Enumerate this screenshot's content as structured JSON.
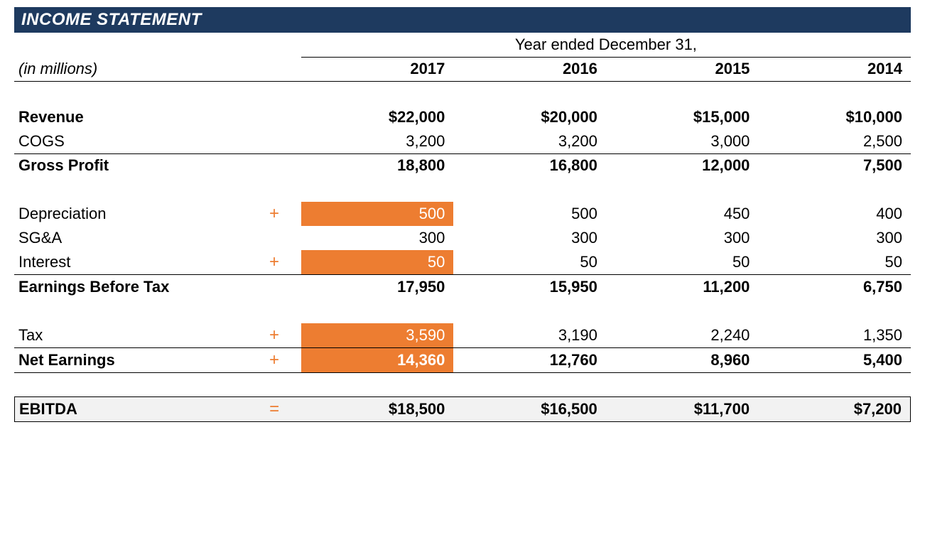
{
  "title": "INCOME STATEMENT",
  "period_header": "Year ended December 31,",
  "unit_label": "(in millions)",
  "years": [
    "2017",
    "2016",
    "2015",
    "2014"
  ],
  "colors": {
    "title_bg": "#1e3a5f",
    "title_text": "#ffffff",
    "accent": "#ed7d31",
    "ebitda_bg": "#f2f2f2",
    "border": "#000000",
    "text": "#000000"
  },
  "typography": {
    "base_fontsize_pt": 16,
    "title_fontsize_pt": 18,
    "font_family": "Arial"
  },
  "layout": {
    "col_label_pct": 26,
    "col_op_pct": 6,
    "col_val_pct": 17
  },
  "rows": {
    "revenue": {
      "label": "Revenue",
      "values": [
        "$22,000",
        "$20,000",
        "$15,000",
        "$10,000"
      ],
      "bold": true
    },
    "cogs": {
      "label": "COGS",
      "values": [
        "3,200",
        "3,200",
        "3,000",
        "2,500"
      ],
      "bold": false
    },
    "gross_profit": {
      "label": "Gross Profit",
      "values": [
        "18,800",
        "16,800",
        "12,000",
        "7,500"
      ],
      "bold": true
    },
    "depreciation": {
      "label": "Depreciation",
      "op": "+",
      "values": [
        "500",
        "500",
        "450",
        "400"
      ],
      "highlight_first": true
    },
    "sga": {
      "label": "SG&A",
      "values": [
        "300",
        "300",
        "300",
        "300"
      ]
    },
    "interest": {
      "label": "Interest",
      "op": "+",
      "values": [
        "50",
        "50",
        "50",
        "50"
      ],
      "highlight_first": true
    },
    "ebt": {
      "label": "Earnings Before Tax",
      "values": [
        "17,950",
        "15,950",
        "11,200",
        "6,750"
      ],
      "bold": true
    },
    "tax": {
      "label": "Tax",
      "op": "+",
      "values": [
        "3,590",
        "3,190",
        "2,240",
        "1,350"
      ],
      "highlight_first": true
    },
    "net_earnings": {
      "label": "Net Earnings",
      "op": "+",
      "values": [
        "14,360",
        "12,760",
        "8,960",
        "5,400"
      ],
      "bold": true,
      "highlight_first": true
    },
    "ebitda": {
      "label": "EBITDA",
      "op": "=",
      "values": [
        "$18,500",
        "$16,500",
        "$11,700",
        "$7,200"
      ],
      "bold": true
    }
  }
}
